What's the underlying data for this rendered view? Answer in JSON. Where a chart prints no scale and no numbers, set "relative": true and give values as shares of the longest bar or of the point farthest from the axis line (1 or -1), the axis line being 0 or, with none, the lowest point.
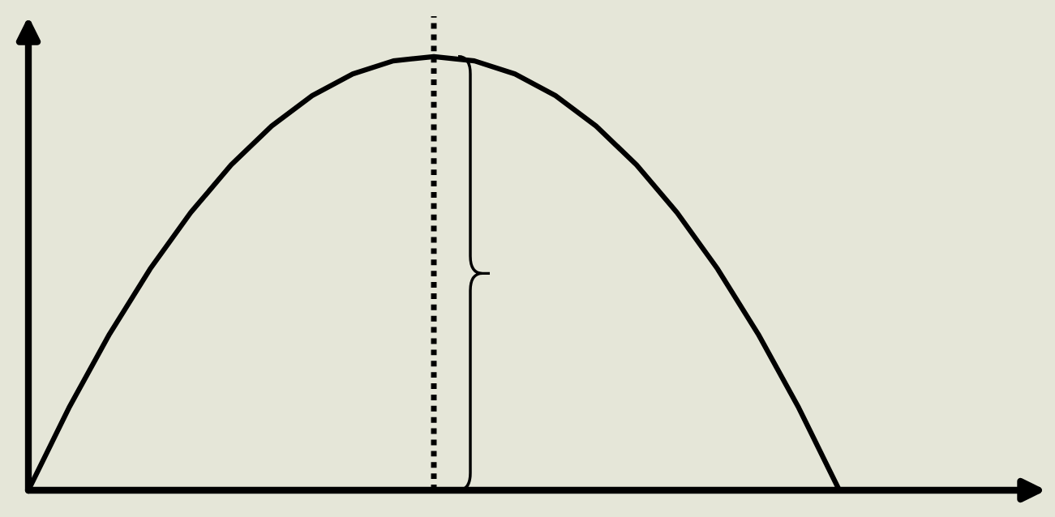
{
  "chart_data": {
    "type": "line",
    "relative": true,
    "categories": [
      null,
      null,
      null,
      null,
      null,
      null,
      null,
      null,
      null,
      null,
      null,
      null,
      null,
      null,
      null,
      null,
      null,
      null,
      null,
      null,
      null
    ],
    "series": [
      {
        "color": "#000000",
        "values": [
          0,
          0.19,
          0.36,
          0.51,
          0.64,
          0.75,
          0.84,
          0.91,
          0.96,
          0.99,
          1,
          0.99,
          0.96,
          0.91,
          0.84,
          0.75,
          0.64,
          0.51,
          0.36,
          0.19,
          0
        ]
      }
    ],
    "marker": "none",
    "line_style": "solid",
    "legend": false
  }
}
